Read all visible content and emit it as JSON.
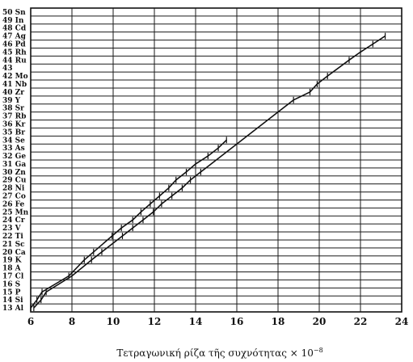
{
  "chart_data": {
    "type": "line",
    "title": "",
    "xlabel": "Τετραγωνική ρίζα τῆς συχνότητας × 10",
    "xlabel_exponent": "−8",
    "ylabel": "",
    "xlim": [
      6,
      24
    ],
    "ylim": [
      13,
      50
    ],
    "x_ticks": [
      "6",
      "8",
      "10",
      "12",
      "14",
      "16",
      "18",
      "20",
      "22",
      "24"
    ],
    "y_ticks": [
      {
        "z": 13,
        "label": "13 Al"
      },
      {
        "z": 14,
        "label": "14 Si"
      },
      {
        "z": 15,
        "label": "15 P"
      },
      {
        "z": 16,
        "label": "16 S"
      },
      {
        "z": 17,
        "label": "17 Cl"
      },
      {
        "z": 18,
        "label": "18 A"
      },
      {
        "z": 19,
        "label": "19 K"
      },
      {
        "z": 20,
        "label": "20 Ca"
      },
      {
        "z": 21,
        "label": "21 Sc"
      },
      {
        "z": 22,
        "label": "22 Ti"
      },
      {
        "z": 23,
        "label": "23 V"
      },
      {
        "z": 24,
        "label": "24 Cr"
      },
      {
        "z": 25,
        "label": "25 Mn"
      },
      {
        "z": 26,
        "label": "26 Fe"
      },
      {
        "z": 27,
        "label": "27 Co"
      },
      {
        "z": 28,
        "label": "28 Ni"
      },
      {
        "z": 29,
        "label": "29 Cu"
      },
      {
        "z": 30,
        "label": "30 Zn"
      },
      {
        "z": 31,
        "label": "31 Ga"
      },
      {
        "z": 32,
        "label": "32 Ge"
      },
      {
        "z": 33,
        "label": "33 As"
      },
      {
        "z": 34,
        "label": "34 Se"
      },
      {
        "z": 35,
        "label": "35 Br"
      },
      {
        "z": 36,
        "label": "36 Kr"
      },
      {
        "z": 37,
        "label": "37 Rb"
      },
      {
        "z": 38,
        "label": "38 Sr"
      },
      {
        "z": 39,
        "label": "39 Y"
      },
      {
        "z": 40,
        "label": "40 Zr"
      },
      {
        "z": 41,
        "label": "41 Nb"
      },
      {
        "z": 42,
        "label": "42 Mo"
      },
      {
        "z": 43,
        "label": "43"
      },
      {
        "z": 44,
        "label": "44 Ru"
      },
      {
        "z": 45,
        "label": "45 Rh"
      },
      {
        "z": 46,
        "label": "46 Pd"
      },
      {
        "z": 47,
        "label": "47 Ag"
      },
      {
        "z": 48,
        "label": "48 Cd"
      },
      {
        "z": 49,
        "label": "49 In"
      },
      {
        "z": 50,
        "label": "50 Sn"
      }
    ],
    "grid": true,
    "series": [
      {
        "points": [
          [
            6.15,
            13
          ],
          [
            6.5,
            14
          ],
          [
            6.75,
            15
          ],
          [
            8.0,
            17
          ],
          [
            8.95,
            19
          ],
          [
            9.45,
            20
          ],
          [
            10.45,
            22
          ],
          [
            10.95,
            23
          ],
          [
            11.45,
            24
          ],
          [
            11.95,
            25
          ],
          [
            12.35,
            26
          ],
          [
            12.85,
            27
          ],
          [
            13.35,
            28
          ],
          [
            13.75,
            29
          ],
          [
            14.25,
            30
          ],
          [
            18.75,
            39
          ],
          [
            19.55,
            40
          ],
          [
            19.9,
            41
          ],
          [
            20.4,
            42
          ],
          [
            21.45,
            44
          ],
          [
            22.0,
            45
          ],
          [
            22.6,
            46
          ],
          [
            23.2,
            47
          ]
        ]
      },
      {
        "points": [
          [
            6.0,
            13
          ],
          [
            6.0,
            13
          ],
          [
            6.3,
            14
          ],
          [
            6.55,
            15
          ],
          [
            7.85,
            17
          ],
          [
            8.6,
            19
          ],
          [
            9.05,
            20
          ],
          [
            9.95,
            22
          ],
          [
            10.4,
            23
          ],
          [
            10.95,
            24
          ],
          [
            11.35,
            25
          ],
          [
            11.8,
            26
          ],
          [
            12.25,
            27
          ],
          [
            12.7,
            28
          ],
          [
            13.05,
            29
          ],
          [
            13.55,
            30
          ],
          [
            14.0,
            31
          ],
          [
            14.6,
            32
          ],
          [
            15.1,
            33
          ],
          [
            15.5,
            34
          ]
        ]
      }
    ]
  }
}
